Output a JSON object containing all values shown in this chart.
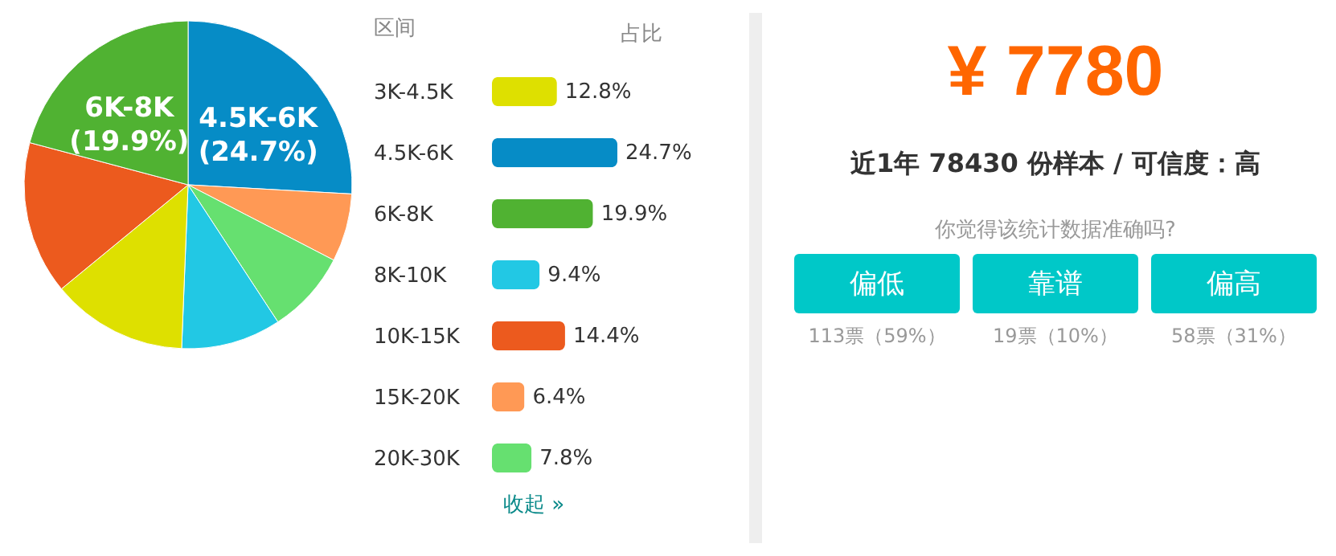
{
  "chart_data": [
    {
      "type": "pie",
      "categories": [
        "4.5K-6K",
        null,
        null,
        null,
        null,
        null,
        "6K-8K"
      ],
      "values": [
        24.7,
        6.4,
        7.8,
        9.4,
        12.8,
        14.4,
        19.9
      ],
      "colors": [
        "#068cc6",
        "#ff9955",
        "#66e070",
        "#22c8e4",
        "#dee000",
        "#ec5a1e",
        "#50b232"
      ],
      "value_labels": [
        "(24.7%)",
        null,
        null,
        null,
        null,
        null,
        "(19.9%)"
      ]
    },
    {
      "type": "bar",
      "orientation": "horizontal",
      "ylabel": "区间",
      "categories": [
        "3K-4.5K",
        "4.5K-6K",
        "6K-8K",
        "8K-10K",
        "10K-15K",
        "15K-20K",
        "20K-30K"
      ],
      "values": [
        12.8,
        24.7,
        19.9,
        9.4,
        14.4,
        6.4,
        7.8
      ],
      "colors": [
        "#dee000",
        "#068cc6",
        "#50b232",
        "#22c8e4",
        "#ec5a1e",
        "#ff9955",
        "#66e070"
      ],
      "value_labels": [
        "12.8%",
        "24.7%",
        "19.9%",
        "9.4%",
        "14.4%",
        "6.4%",
        "7.8%"
      ],
      "annotations": [
        "占比",
        "收起 »"
      ]
    },
    {
      "type": "other",
      "title": "¥ 7780",
      "subtitle": "近1年 78430 份样本 / 可信度：高",
      "annotations": [
        "你觉得该统计数据准确吗?",
        "偏低",
        "靠谱",
        "偏高",
        "113票（59%）",
        "19票（10%）",
        "58票（31%）"
      ]
    }
  ]
}
